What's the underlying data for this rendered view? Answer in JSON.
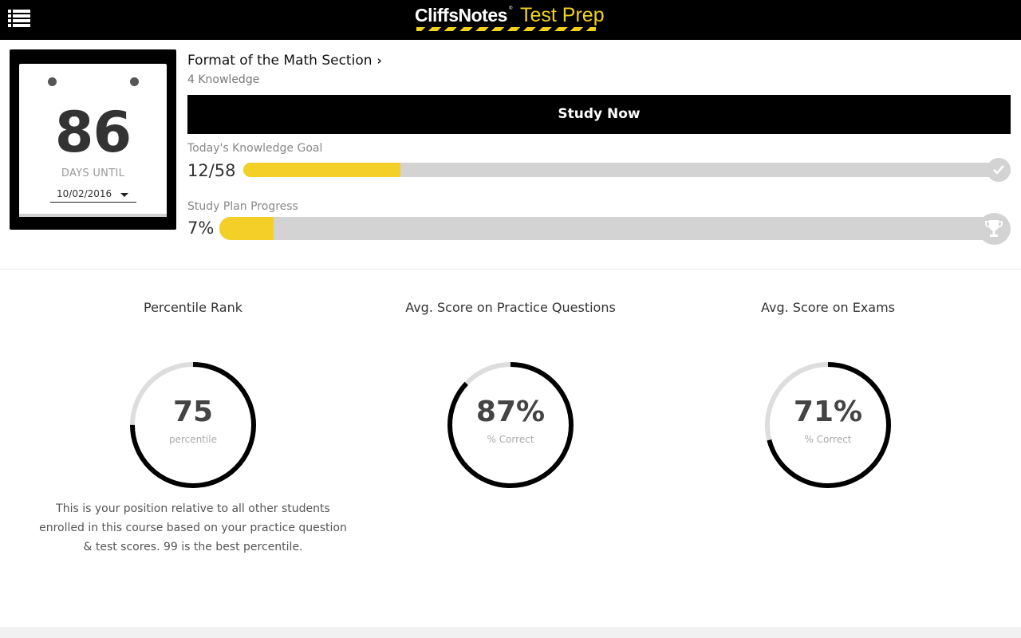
{
  "header": {
    "brand": "CliffsNotes",
    "brand_mark": "®",
    "product": "Test Prep",
    "menu_icon": "list-menu-icon",
    "stripe_colors": [
      "#f2d21a",
      "#000000"
    ]
  },
  "countdown": {
    "days": "86",
    "label": "DAYS UNTIL",
    "date": "10/02/2016"
  },
  "section": {
    "title": "Format of the Math Section",
    "subtitle": "4 Knowledge"
  },
  "study_button": {
    "label": "Study Now"
  },
  "knowledge_goal": {
    "label": "Today's Knowledge Goal",
    "value": "12/58",
    "completed": 12,
    "total": 58,
    "icon": "checkmark-icon"
  },
  "plan_progress": {
    "label": "Study Plan Progress",
    "value": "7%",
    "percent": 7,
    "icon": "trophy-icon"
  },
  "stats": [
    {
      "title": "Percentile Rank",
      "value": "75",
      "unit": "percentile",
      "fraction": 0.75,
      "description": "This is your position relative to all other students enrolled in this course based on your practice question & test scores. 99 is the best percentile."
    },
    {
      "title": "Avg. Score on Practice Questions",
      "value": "87%",
      "unit": "% Correct",
      "fraction": 0.87
    },
    {
      "title": "Avg. Score on Exams",
      "value": "71%",
      "unit": "% Correct",
      "fraction": 0.71
    }
  ],
  "colors": {
    "accent": "#f4cf27",
    "track": "#d3d3d3",
    "ring_fill": "#000000",
    "ring_track": "#dddddd"
  }
}
